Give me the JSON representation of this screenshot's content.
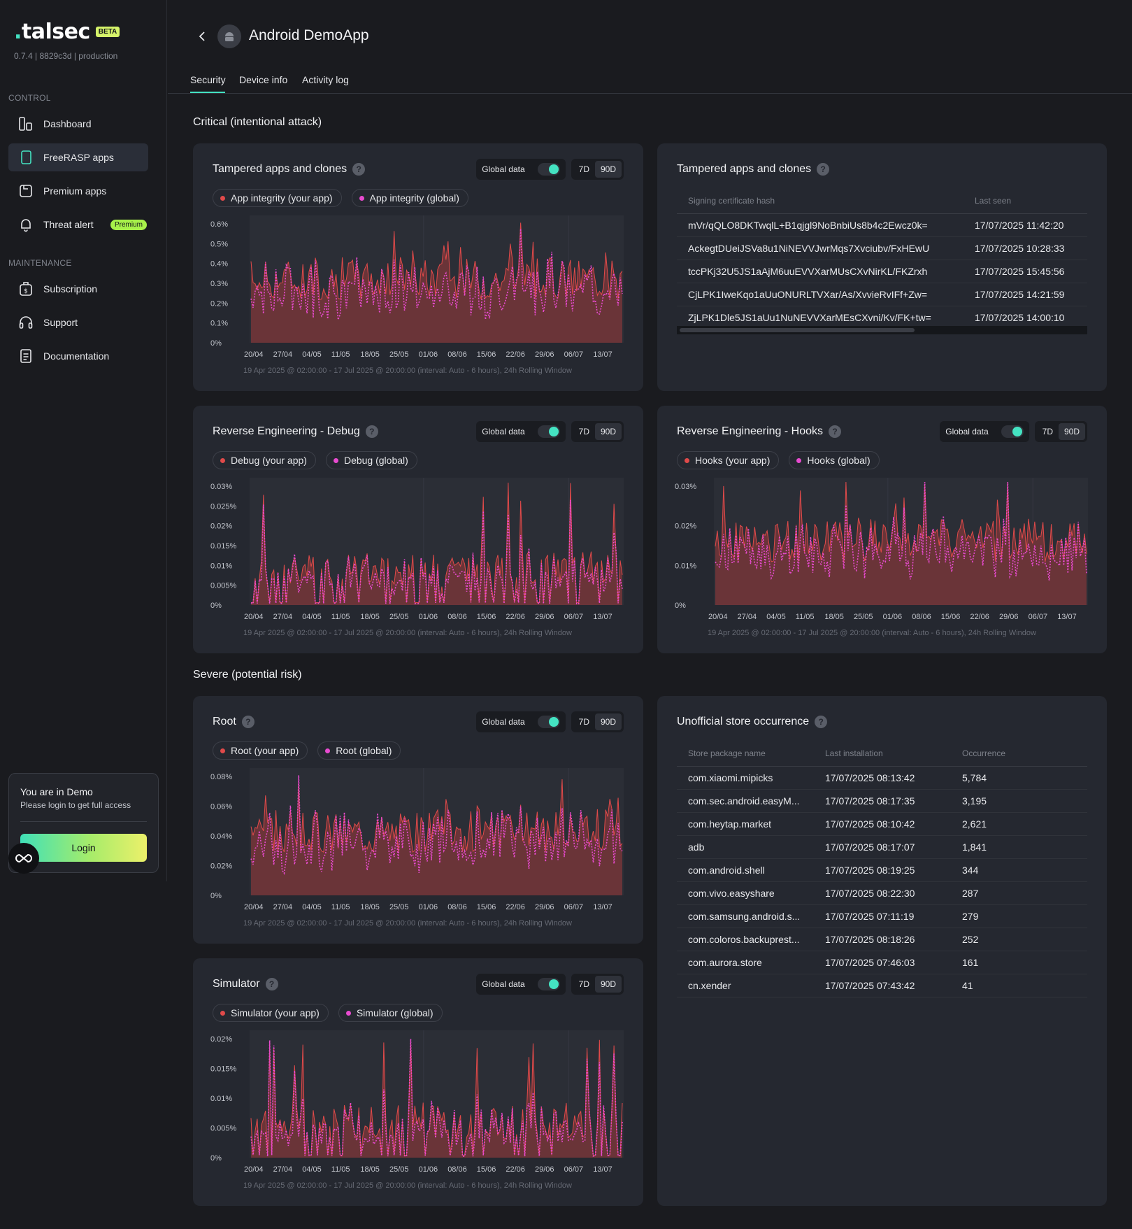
{
  "sidebar": {
    "logo": "talsec",
    "beta": "BETA",
    "version": "0.7.4 | 8829c3d | production",
    "control_label": "CONTROL",
    "maintenance_label": "MAINTENANCE",
    "items": [
      {
        "label": "Dashboard",
        "icon": "dashboard-icon"
      },
      {
        "label": "FreeRASP apps",
        "icon": "phone-icon"
      },
      {
        "label": "Premium apps",
        "icon": "premium-app-icon"
      },
      {
        "label": "Threat alert",
        "icon": "bell-icon",
        "badge": "Premium"
      },
      {
        "label": "Subscription",
        "icon": "dollar-icon"
      },
      {
        "label": "Support",
        "icon": "headset-icon"
      },
      {
        "label": "Documentation",
        "icon": "document-icon"
      }
    ],
    "demo": {
      "title": "You are in Demo",
      "subtitle": "Please login to get full access",
      "login": "Login"
    }
  },
  "header": {
    "title": "Android DemoApp",
    "tabs": [
      "Security",
      "Device info",
      "Activity log"
    ]
  },
  "sections": {
    "critical": "Critical (intentional attack)",
    "severe": "Severe (potential risk)"
  },
  "controls": {
    "global": "Global data",
    "r7": "7D",
    "r90": "90D"
  },
  "colors": {
    "accent": "#44e3c2",
    "app_series": "#e04a4a",
    "global_series": "#e84bd0",
    "area": "#6a3438"
  },
  "charts": {
    "xticks": [
      "20/04",
      "27/04",
      "04/05",
      "11/05",
      "18/05",
      "25/05",
      "01/06",
      "08/06",
      "15/06",
      "22/06",
      "29/06",
      "06/07",
      "13/07"
    ],
    "caption": "19 Apr 2025 @ 02:00:00 - 17 Jul 2025 @ 20:00:00 (interval: Auto - 6 hours), 24h Rolling Window",
    "tampered": {
      "title": "Tampered apps and clones",
      "legend_app": "App integrity (your app)",
      "legend_global": "App integrity (global)",
      "yticks": [
        "0.6%",
        "0.5%",
        "0.4%",
        "0.3%",
        "0.2%",
        "0.1%",
        "0%"
      ]
    },
    "debug": {
      "title": "Reverse Engineering - Debug",
      "legend_app": "Debug (your app)",
      "legend_global": "Debug (global)",
      "yticks": [
        "0.03%",
        "0.025%",
        "0.02%",
        "0.015%",
        "0.01%",
        "0.005%",
        "0%"
      ]
    },
    "hooks": {
      "title": "Reverse Engineering - Hooks",
      "legend_app": "Hooks (your app)",
      "legend_global": "Hooks (global)",
      "yticks": [
        "0.03%",
        "0.02%",
        "0.01%",
        "0%"
      ]
    },
    "root": {
      "title": "Root",
      "legend_app": "Root (your app)",
      "legend_global": "Root (global)",
      "yticks": [
        "0.08%",
        "0.06%",
        "0.04%",
        "0.02%",
        "0%"
      ]
    },
    "simulator": {
      "title": "Simulator",
      "legend_app": "Simulator (your app)",
      "legend_global": "Simulator (global)",
      "yticks": [
        "0.02%",
        "0.015%",
        "0.01%",
        "0.005%",
        "0%"
      ]
    }
  },
  "tampered_table": {
    "title": "Tampered apps and clones",
    "headers": [
      "Signing certificate hash",
      "Last seen"
    ],
    "rows": [
      [
        "mVr/qQLO8DKTwqlL+B1qjgl9NoBnbiUs8b4c2Ewcz0k=",
        "17/07/2025 11:42:20"
      ],
      [
        "AckegtDUeiJSVa8u1NiNEVVJwrMqs7Xvciubv/FxHEwU",
        "17/07/2025 10:28:33"
      ],
      [
        "tccPKj32U5JS1aAjM6uuEVVXarMUsCXvNirKL/FKZrxh",
        "17/07/2025 15:45:56"
      ],
      [
        "CjLPK1IweKqo1aUuONURLTVXar/As/XvvieRvIFf+Zw=",
        "17/07/2025 14:21:59"
      ],
      [
        "ZjLPK1Dle5JS1aUu1NuNEVVXarMEsCXvni/Kv/FK+tw=",
        "17/07/2025 14:00:10"
      ]
    ]
  },
  "store_table": {
    "title": "Unofficial store occurrence",
    "headers": [
      "Store package name",
      "Last installation",
      "Occurrence"
    ],
    "rows": [
      [
        "com.xiaomi.mipicks",
        "17/07/2025 08:13:42",
        "5,784"
      ],
      [
        "com.sec.android.easyM...",
        "17/07/2025 08:17:35",
        "3,195"
      ],
      [
        "com.heytap.market",
        "17/07/2025 08:10:42",
        "2,621"
      ],
      [
        "adb",
        "17/07/2025 08:17:07",
        "1,841"
      ],
      [
        "com.android.shell",
        "17/07/2025 08:19:25",
        "344"
      ],
      [
        "com.vivo.easyshare",
        "17/07/2025 08:22:30",
        "287"
      ],
      [
        "com.samsung.android.s...",
        "17/07/2025 07:11:19",
        "279"
      ],
      [
        "com.coloros.backuprest...",
        "17/07/2025 08:18:26",
        "252"
      ],
      [
        "com.aurora.store",
        "17/07/2025 07:46:03",
        "161"
      ],
      [
        "cn.xender",
        "17/07/2025 07:43:42",
        "41"
      ]
    ]
  }
}
